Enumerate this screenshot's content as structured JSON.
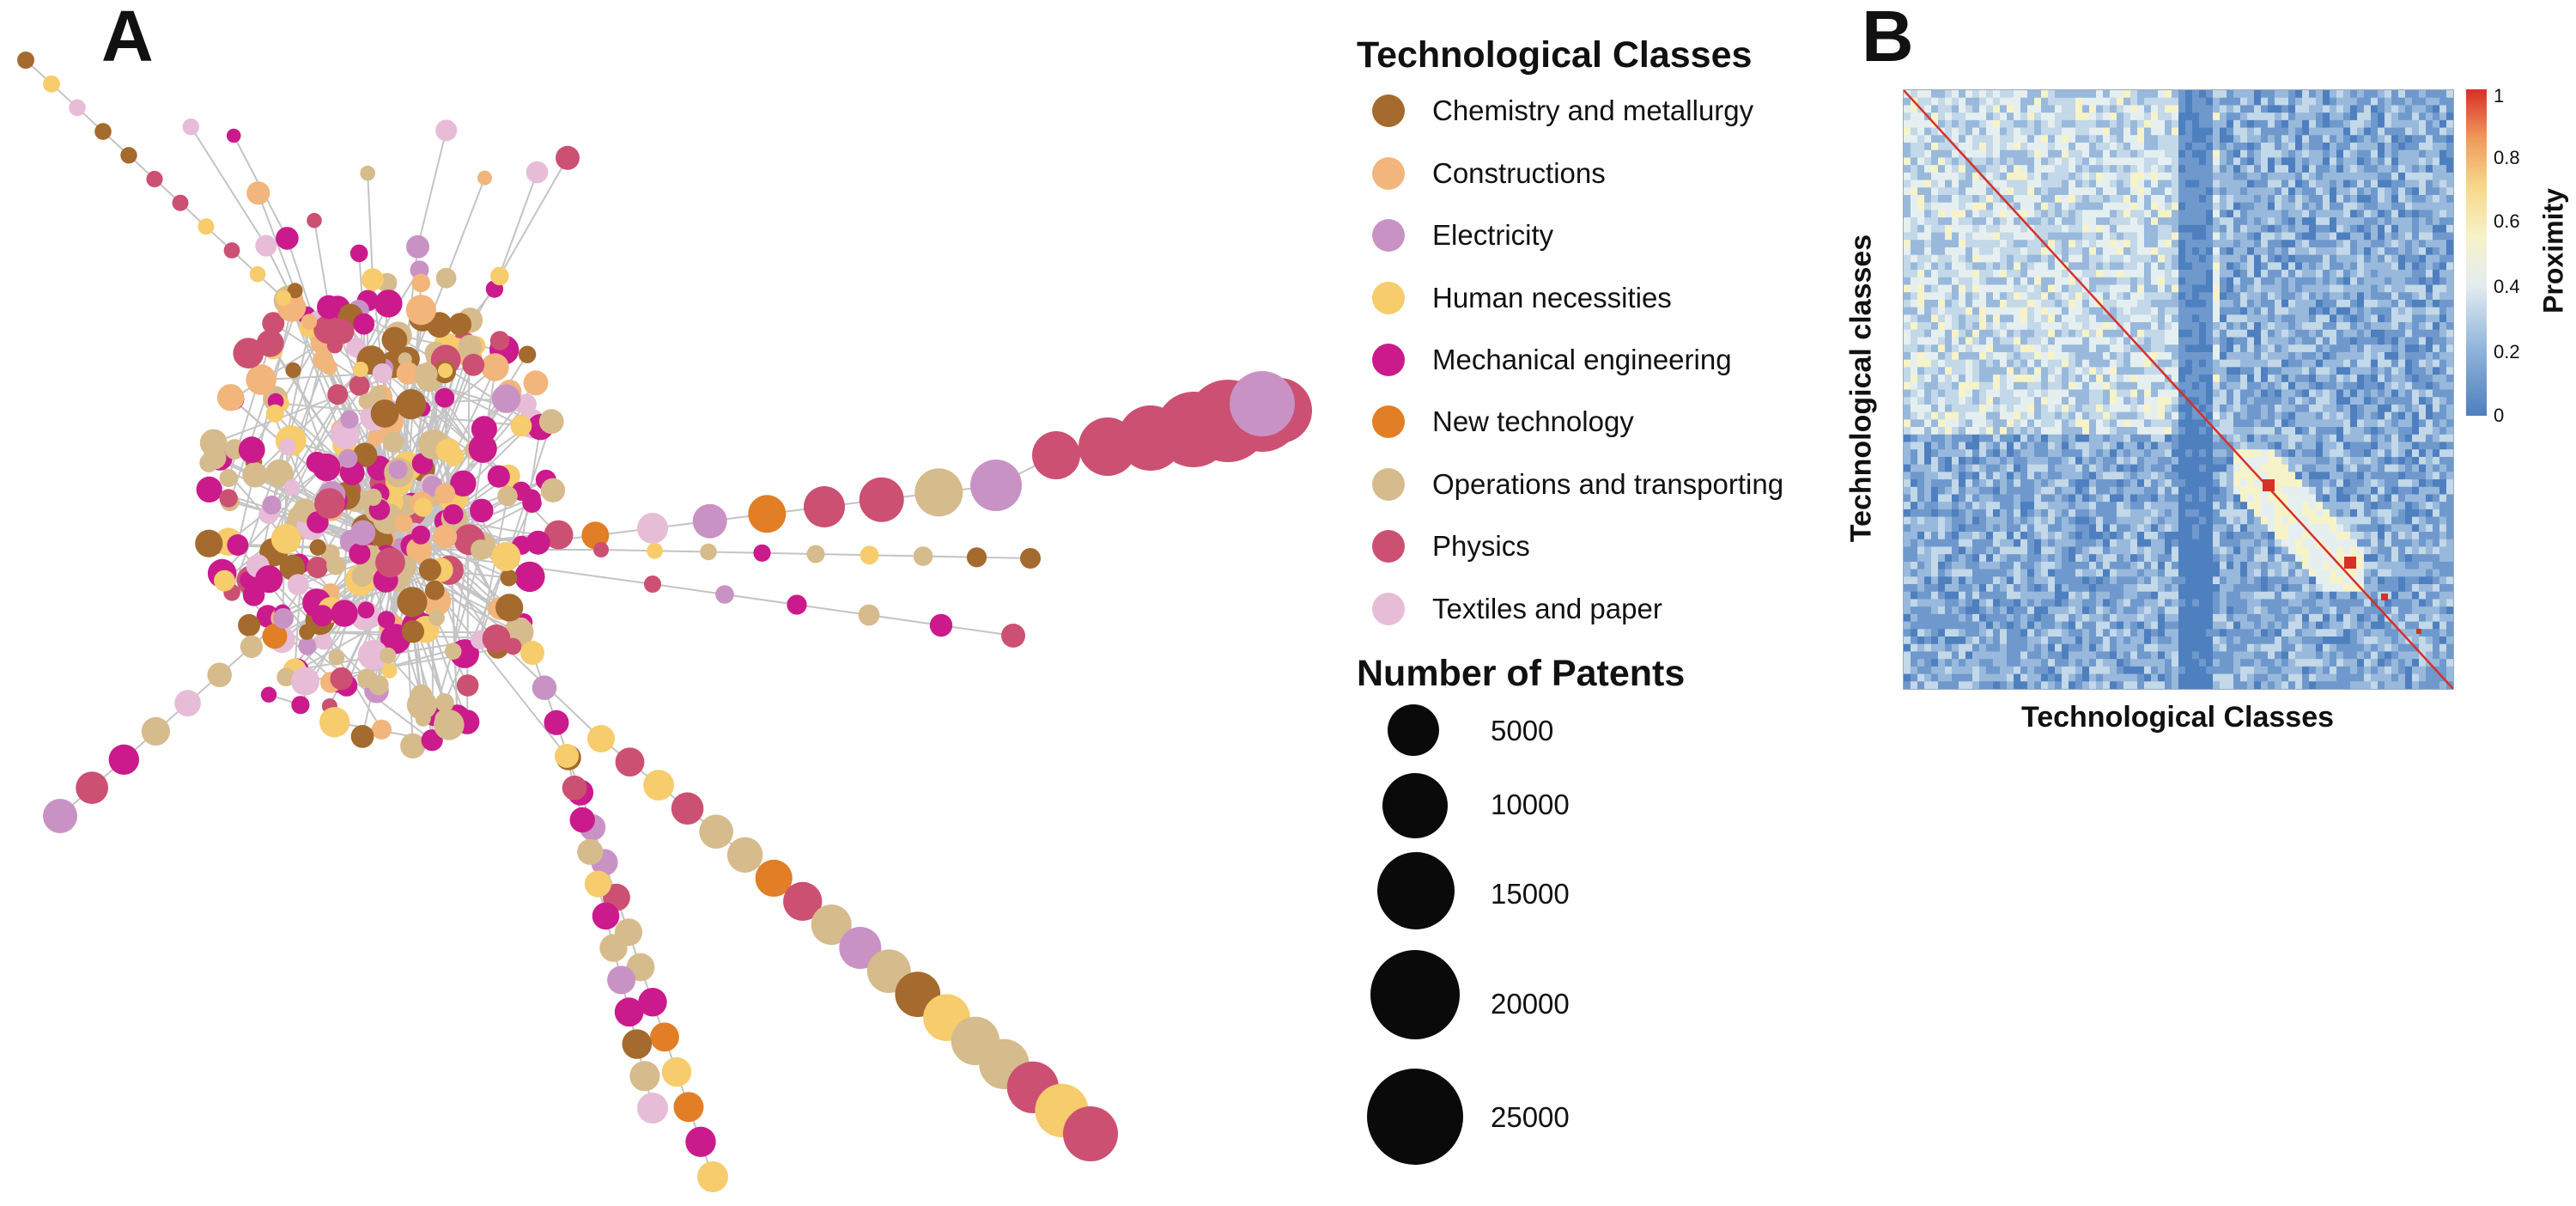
{
  "panels": {
    "a_letter": "A",
    "b_letter": "B"
  },
  "legend": {
    "classes_title": "Technological Classes",
    "classes": [
      {
        "label": "Chemistry and metallurgy",
        "color": "#a46a2e"
      },
      {
        "label": "Constructions",
        "color": "#f2b57c"
      },
      {
        "label": "Electricity",
        "color": "#c893c4"
      },
      {
        "label": "Human necessities",
        "color": "#f6cc6c"
      },
      {
        "label": "Mechanical engineering",
        "color": "#cb1a8c"
      },
      {
        "label": "New technology",
        "color": "#e27e26"
      },
      {
        "label": "Operations and transporting",
        "color": "#d6bb8c"
      },
      {
        "label": "Physics",
        "color": "#cc5072"
      },
      {
        "label": "Textiles and paper",
        "color": "#e6bcd6"
      }
    ],
    "size_title": "Number of Patents",
    "sizes": [
      "5000",
      "10000",
      "15000",
      "20000",
      "25000"
    ]
  },
  "heatmap": {
    "y_label": "Technological classes",
    "x_label": "Technological Classes",
    "colorbar_label": "Proximity",
    "colorbar_ticks": [
      "1",
      "0.8",
      "0.6",
      "0.4",
      "0.2",
      "0"
    ],
    "color_low": "#4e7fbf",
    "color_mid": "#f6f3c8",
    "color_high": "#d73027"
  }
}
